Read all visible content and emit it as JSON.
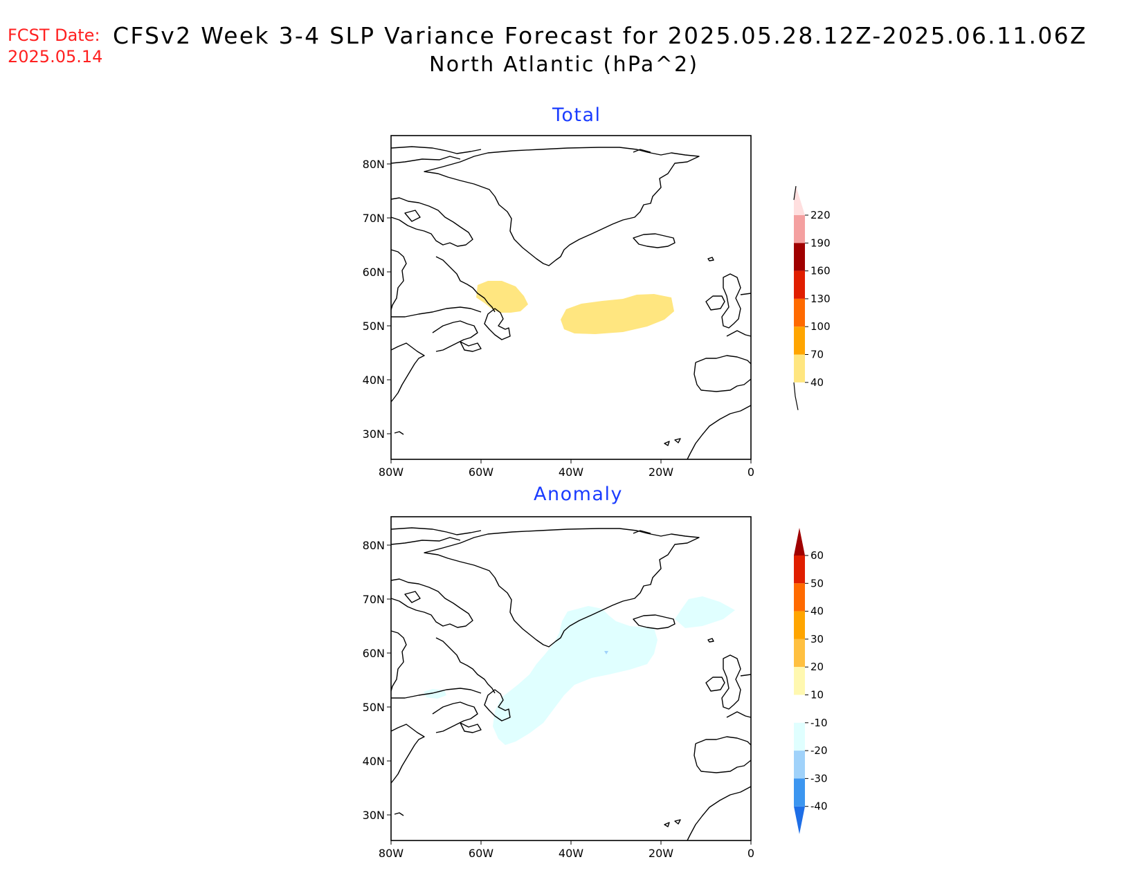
{
  "header": {
    "fcst_label": "FCST Date:",
    "fcst_date": "2025.05.14",
    "title": "CFSv2 Week 3-4 SLP Variance Forecast for 2025.05.28.12Z-2025.06.11.06Z",
    "subtitle": "North Atlantic (hPa^2)"
  },
  "maps": [
    {
      "id": "total",
      "title": "Total",
      "lat_labels": [
        "80N",
        "70N",
        "60N",
        "50N",
        "40N",
        "30N"
      ],
      "lon_labels": [
        "80W",
        "60W",
        "40W",
        "20W",
        "0"
      ],
      "colorbar": {
        "labels": [
          "220",
          "190",
          "160",
          "130",
          "100",
          "70",
          "40"
        ],
        "colors": [
          "#ffdfdf",
          "#f4a0a0",
          "#a00000",
          "#e01e00",
          "#ff6a00",
          "#ffa500",
          "#ffe680"
        ]
      },
      "shading_color": "#ffe680"
    },
    {
      "id": "anomaly",
      "title": "Anomaly",
      "lat_labels": [
        "80N",
        "70N",
        "60N",
        "50N",
        "40N",
        "30N"
      ],
      "lon_labels": [
        "80W",
        "60W",
        "40W",
        "20W",
        "0"
      ],
      "colorbar": {
        "labels": [
          "60",
          "50",
          "40",
          "30",
          "20",
          "10",
          "-10",
          "-20",
          "-30",
          "-40"
        ],
        "colors": [
          "#a00000",
          "#e01e00",
          "#ff6a00",
          "#ffa500",
          "#ffc040",
          "#fff8b0",
          "#ffffff",
          "#e0ffff",
          "#a0d2fa",
          "#3c96f0",
          "#1e6ee6"
        ]
      },
      "shading_color": "#e0ffff"
    }
  ]
}
